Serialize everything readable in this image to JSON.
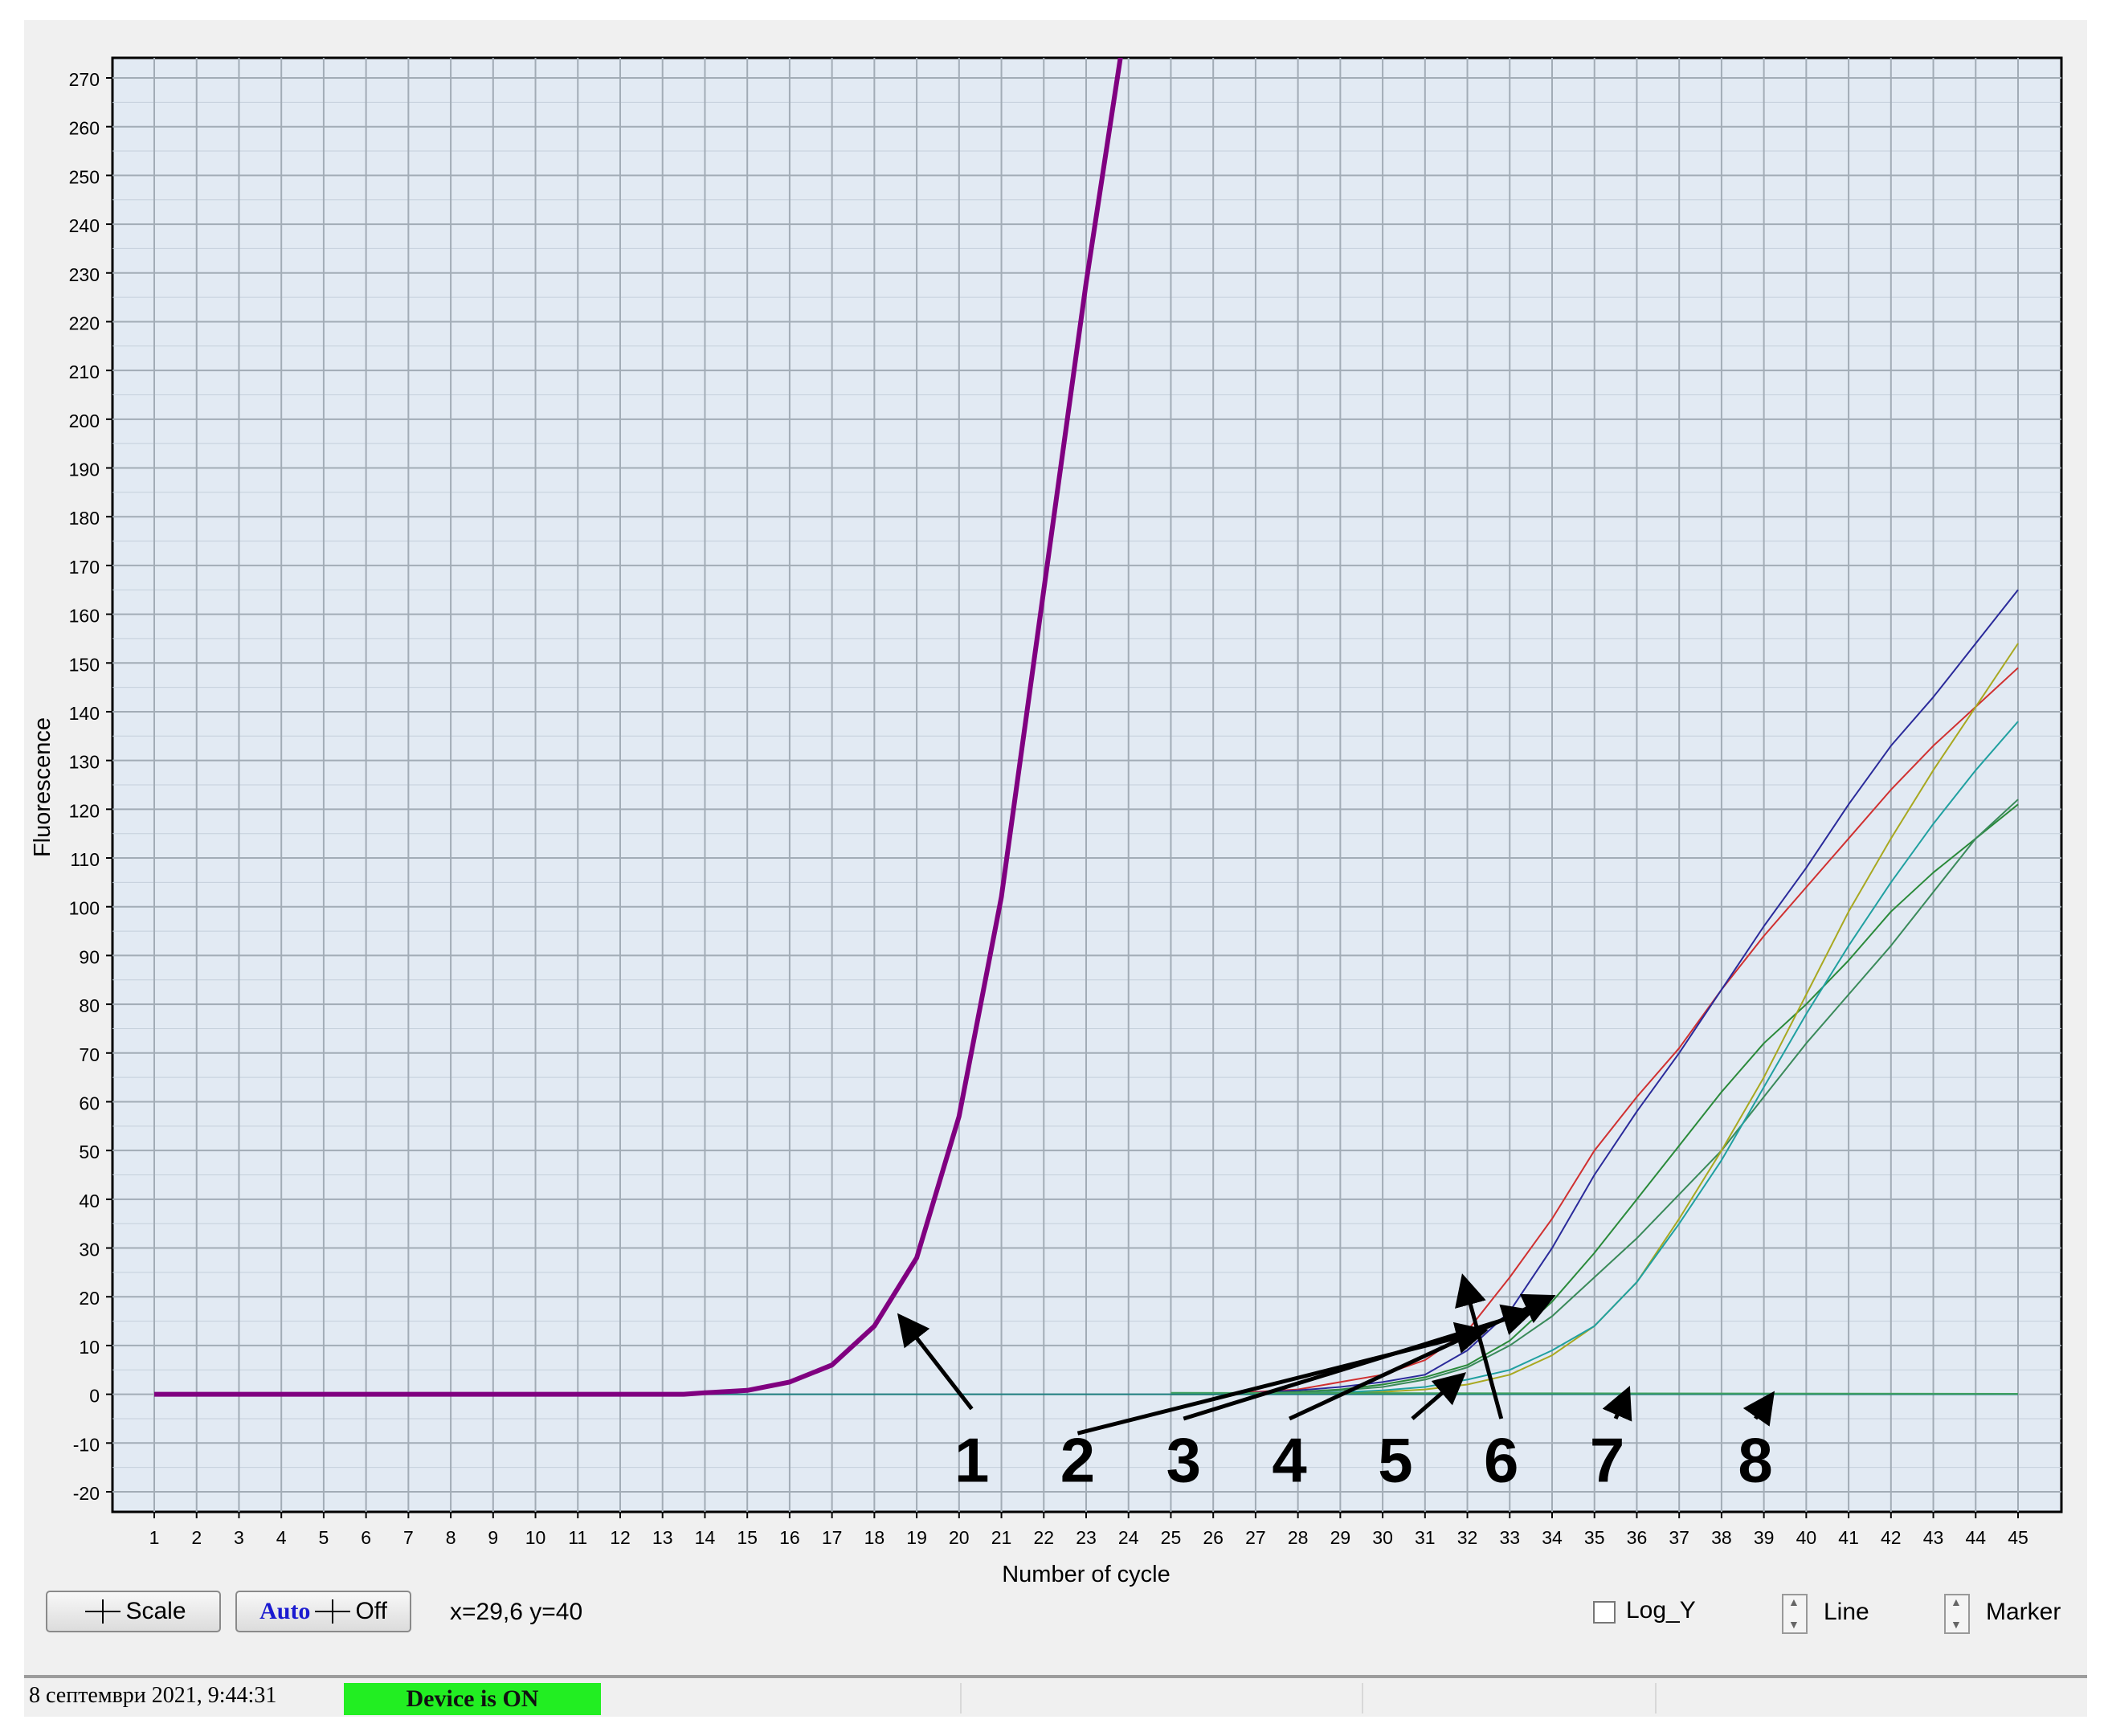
{
  "app": {
    "toolbar": {
      "scale_label": "Scale",
      "auto_label": "Auto",
      "off_label": "Off",
      "coords_text": "x=29,6 y=40",
      "logy_label": "Log_Y",
      "line_label": "Line",
      "marker_label": "Marker"
    },
    "status": {
      "date": "8 септември 2021, 9:44:31",
      "device": "Device is ON"
    },
    "colors": {
      "device_on": "#22ee22"
    }
  },
  "chart_data": {
    "type": "line",
    "xlabel": "Number of cycle",
    "ylabel": "Fluorescence",
    "xlim": [
      1,
      45
    ],
    "ylim": [
      -20,
      270
    ],
    "xticks": [
      1,
      2,
      3,
      4,
      5,
      6,
      7,
      8,
      9,
      10,
      11,
      12,
      13,
      14,
      15,
      16,
      17,
      18,
      19,
      20,
      21,
      22,
      23,
      24,
      25,
      26,
      27,
      28,
      29,
      30,
      31,
      32,
      33,
      34,
      35,
      36,
      37,
      38,
      39,
      40,
      41,
      42,
      43,
      44,
      45
    ],
    "yticks": [
      -20,
      -10,
      0,
      10,
      20,
      30,
      40,
      50,
      60,
      70,
      80,
      90,
      100,
      110,
      120,
      130,
      140,
      150,
      160,
      170,
      180,
      190,
      200,
      210,
      220,
      230,
      240,
      250,
      260,
      270
    ],
    "grid": true,
    "series": [
      {
        "color": "#800080",
        "width": 6,
        "points": [
          [
            1,
            0
          ],
          [
            13.5,
            0
          ],
          [
            14,
            0.3
          ],
          [
            15,
            0.8
          ],
          [
            16,
            2.5
          ],
          [
            17,
            6
          ],
          [
            18,
            14
          ],
          [
            19,
            28
          ],
          [
            20,
            57
          ],
          [
            21,
            102
          ],
          [
            22,
            165
          ],
          [
            23,
            228
          ],
          [
            24,
            285
          ]
        ]
      },
      {
        "color": "#d03030",
        "width": 2,
        "points": [
          [
            25,
            0
          ],
          [
            26,
            0
          ],
          [
            27,
            0.5
          ],
          [
            28,
            1
          ],
          [
            29,
            2.5
          ],
          [
            30,
            4
          ],
          [
            31,
            7
          ],
          [
            32,
            13
          ],
          [
            33,
            24
          ],
          [
            34,
            36
          ],
          [
            35,
            50
          ],
          [
            36,
            61
          ],
          [
            37,
            71
          ],
          [
            38,
            83
          ],
          [
            39,
            94
          ],
          [
            40,
            104
          ],
          [
            41,
            114
          ],
          [
            42,
            124
          ],
          [
            43,
            133
          ],
          [
            44,
            141
          ],
          [
            45,
            149
          ]
        ]
      },
      {
        "color": "#2a2a9a",
        "width": 2,
        "points": [
          [
            25,
            0
          ],
          [
            26,
            0
          ],
          [
            27,
            0.3
          ],
          [
            28,
            0.8
          ],
          [
            29,
            1.5
          ],
          [
            30,
            2.5
          ],
          [
            31,
            4
          ],
          [
            32,
            9
          ],
          [
            33,
            17
          ],
          [
            34,
            30
          ],
          [
            35,
            45
          ],
          [
            36,
            58
          ],
          [
            37,
            70
          ],
          [
            38,
            83
          ],
          [
            39,
            96
          ],
          [
            40,
            108
          ],
          [
            41,
            121
          ],
          [
            42,
            133
          ],
          [
            43,
            143
          ],
          [
            44,
            154
          ],
          [
            45,
            165
          ]
        ]
      },
      {
        "color": "#2a8a3a",
        "width": 2,
        "points": [
          [
            25,
            0
          ],
          [
            26,
            0
          ],
          [
            27,
            0.2
          ],
          [
            28,
            0.5
          ],
          [
            29,
            1
          ],
          [
            30,
            2
          ],
          [
            31,
            3.5
          ],
          [
            32,
            6
          ],
          [
            33,
            11
          ],
          [
            34,
            19
          ],
          [
            35,
            29
          ],
          [
            36,
            40
          ],
          [
            37,
            51
          ],
          [
            38,
            62
          ],
          [
            39,
            72
          ],
          [
            40,
            80
          ],
          [
            41,
            89
          ],
          [
            42,
            99
          ],
          [
            43,
            107
          ],
          [
            44,
            114
          ],
          [
            45,
            121
          ]
        ]
      },
      {
        "color": "#3a8a5a",
        "width": 2,
        "points": [
          [
            25,
            0
          ],
          [
            26,
            0
          ],
          [
            27,
            0.2
          ],
          [
            28,
            0.4
          ],
          [
            29,
            0.8
          ],
          [
            30,
            1.5
          ],
          [
            31,
            3
          ],
          [
            32,
            5.5
          ],
          [
            33,
            10
          ],
          [
            34,
            16
          ],
          [
            35,
            24
          ],
          [
            36,
            32
          ],
          [
            37,
            41
          ],
          [
            38,
            50
          ],
          [
            39,
            61
          ],
          [
            40,
            72
          ],
          [
            41,
            82
          ],
          [
            42,
            92
          ],
          [
            43,
            103
          ],
          [
            44,
            114
          ],
          [
            45,
            122
          ]
        ]
      },
      {
        "color": "#a8a820",
        "width": 2,
        "points": [
          [
            25,
            0
          ],
          [
            26,
            0
          ],
          [
            27,
            0
          ],
          [
            28,
            0.2
          ],
          [
            29,
            0.3
          ],
          [
            30,
            0.5
          ],
          [
            31,
            1
          ],
          [
            32,
            2
          ],
          [
            33,
            4
          ],
          [
            34,
            8
          ],
          [
            35,
            14
          ],
          [
            36,
            23
          ],
          [
            37,
            36
          ],
          [
            38,
            50
          ],
          [
            39,
            65
          ],
          [
            40,
            82
          ],
          [
            41,
            99
          ],
          [
            42,
            114
          ],
          [
            43,
            128
          ],
          [
            44,
            141
          ],
          [
            45,
            154
          ]
        ]
      },
      {
        "color": "#20a0a0",
        "width": 2,
        "points": [
          [
            25,
            0
          ],
          [
            26,
            0
          ],
          [
            27,
            0
          ],
          [
            28,
            0.2
          ],
          [
            29,
            0.4
          ],
          [
            30,
            0.8
          ],
          [
            31,
            1.5
          ],
          [
            32,
            3
          ],
          [
            33,
            5
          ],
          [
            34,
            9
          ],
          [
            35,
            14
          ],
          [
            36,
            23
          ],
          [
            37,
            35
          ],
          [
            38,
            48
          ],
          [
            39,
            63
          ],
          [
            40,
            78
          ],
          [
            41,
            92
          ],
          [
            42,
            105
          ],
          [
            43,
            117
          ],
          [
            44,
            128
          ],
          [
            45,
            138
          ]
        ]
      },
      {
        "color": "#208080",
        "width": 2,
        "points": [
          [
            14,
            0
          ],
          [
            45,
            0
          ]
        ]
      },
      {
        "color": "#40a060",
        "width": 2,
        "points": [
          [
            25,
            0.3
          ],
          [
            34,
            0.2
          ],
          [
            45,
            0.1
          ]
        ]
      }
    ],
    "annotations": [
      {
        "label": "1",
        "label_at": [
          20.3,
          -13
        ],
        "arrow_from": [
          20.3,
          -3
        ],
        "arrow_to": [
          18.6,
          16
        ]
      },
      {
        "label": "2",
        "label_at": [
          22.8,
          -13
        ],
        "arrow_from": [
          22.8,
          -8
        ],
        "arrow_to": [
          32.4,
          13
        ]
      },
      {
        "label": "3",
        "label_at": [
          25.3,
          -13
        ],
        "arrow_from": [
          25.3,
          -5
        ],
        "arrow_to": [
          33.5,
          17
        ]
      },
      {
        "label": "4",
        "label_at": [
          27.8,
          -13
        ],
        "arrow_from": [
          27.8,
          -5
        ],
        "arrow_to": [
          34.0,
          20
        ]
      },
      {
        "label": "5",
        "label_at": [
          30.3,
          -13
        ],
        "arrow_from": [
          30.7,
          -5
        ],
        "arrow_to": [
          31.9,
          4
        ]
      },
      {
        "label": "6",
        "label_at": [
          32.8,
          -13
        ],
        "arrow_from": [
          32.8,
          -5
        ],
        "arrow_to": [
          31.9,
          24
        ]
      },
      {
        "label": "7",
        "label_at": [
          35.3,
          -13
        ],
        "arrow_from": [
          35.5,
          -5
        ],
        "arrow_to": [
          35.8,
          1
        ]
      },
      {
        "label": "8",
        "label_at": [
          38.8,
          -13
        ],
        "arrow_from": [
          38.8,
          -5
        ],
        "arrow_to": [
          39.2,
          0
        ]
      }
    ]
  }
}
